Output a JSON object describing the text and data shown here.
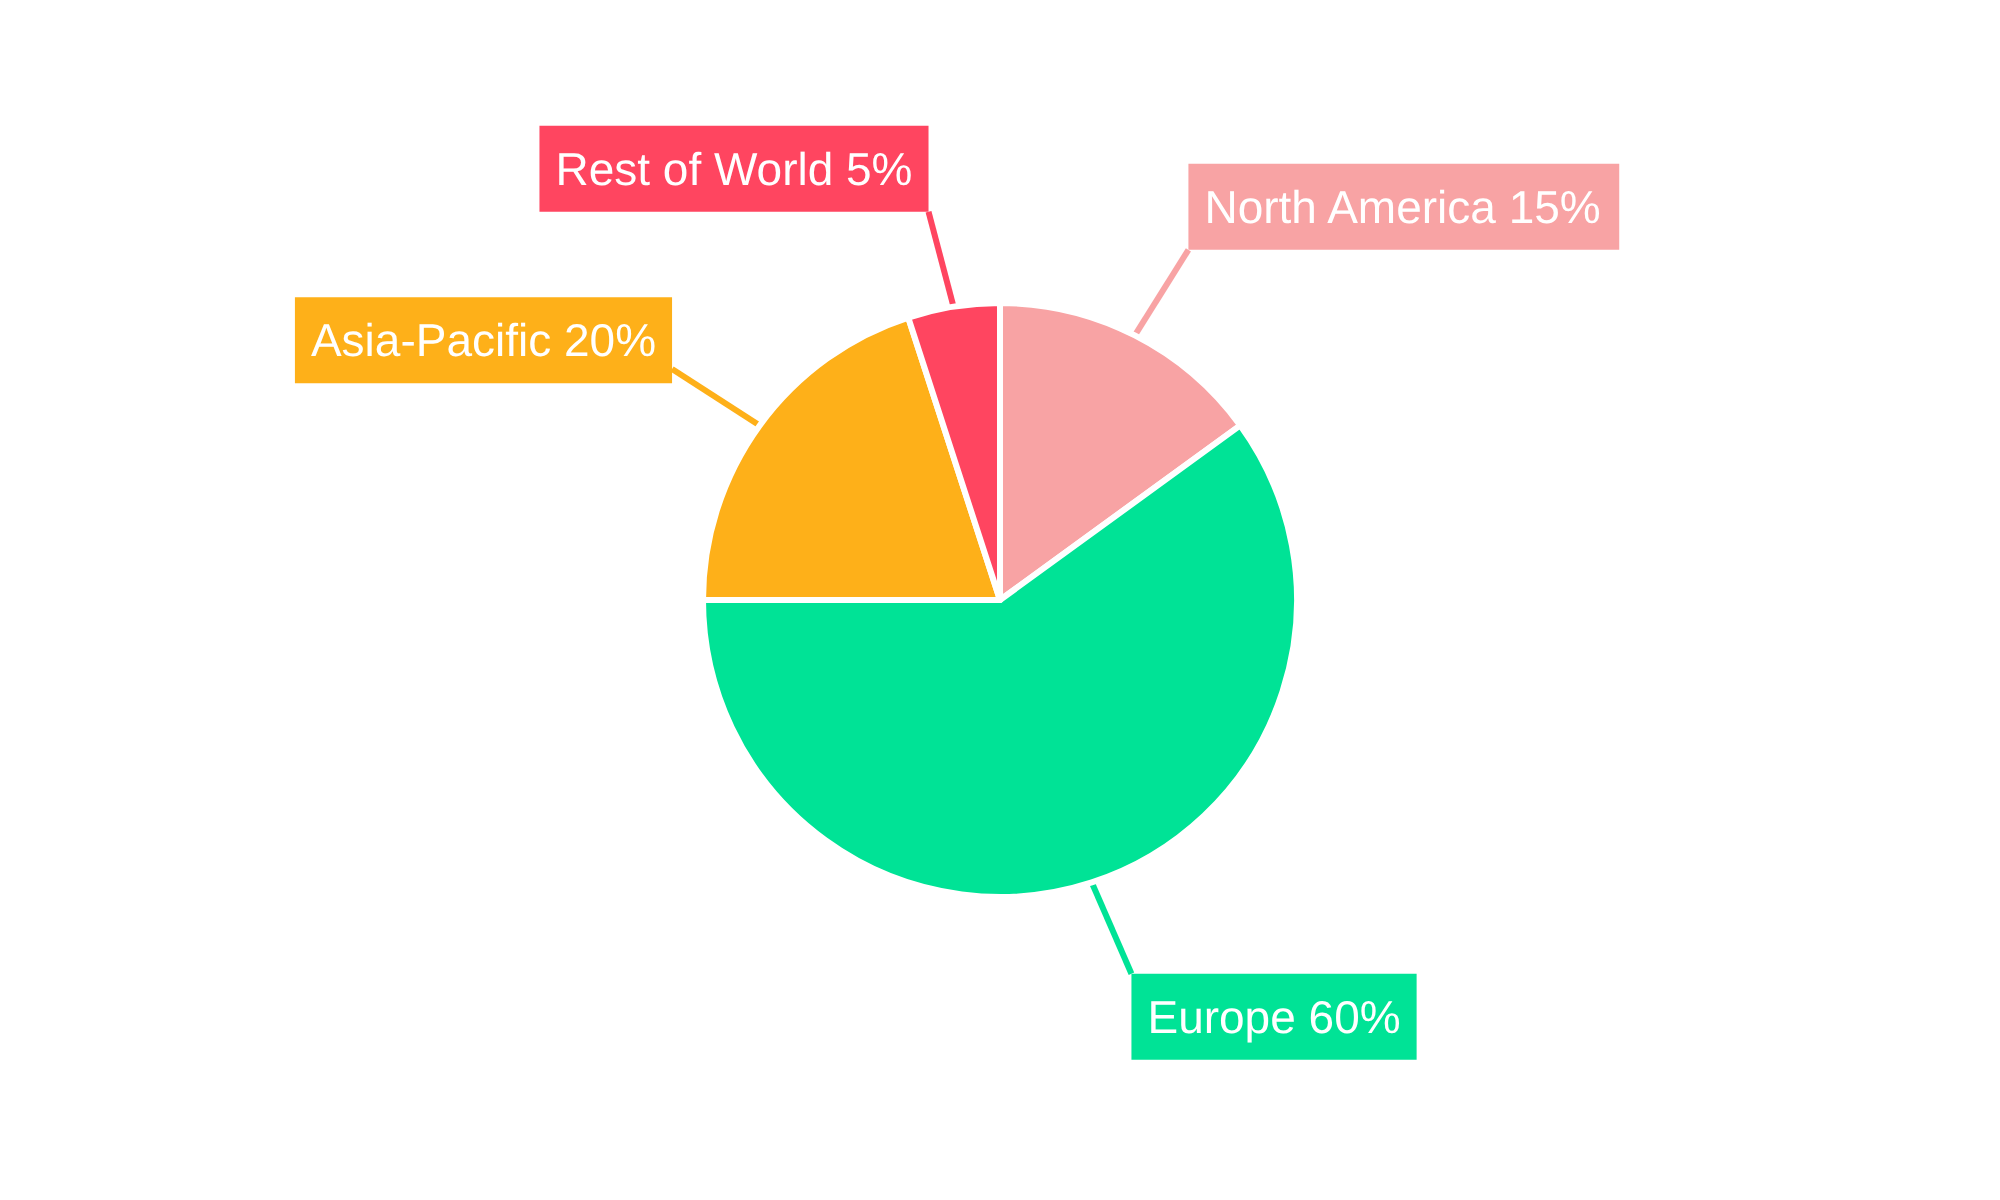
{
  "chart_data": {
    "type": "pie",
    "categories": [
      "North America",
      "Europe",
      "Asia-Pacific",
      "Rest of World"
    ],
    "values": [
      15,
      60,
      20,
      5
    ],
    "colors": [
      "#f8a3a4",
      "#00e396",
      "#feb019",
      "#ff4560"
    ],
    "value_labels": [
      "15%",
      "60%",
      "20%",
      "5%"
    ],
    "legend": false
  }
}
